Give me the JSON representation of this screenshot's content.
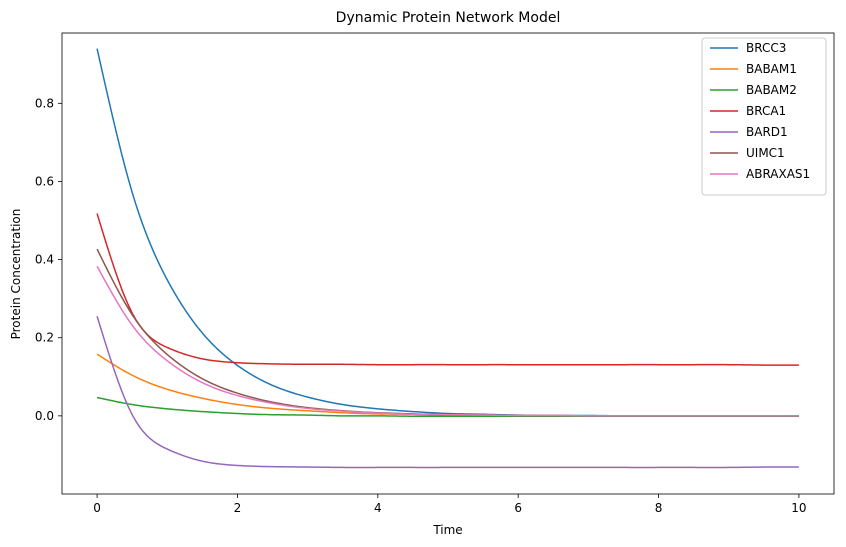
{
  "chart_data": {
    "type": "line",
    "title": "Dynamic Protein Network Model",
    "xlabel": "Time",
    "ylabel": "Protein Concentration",
    "xlim": [
      -0.5,
      10.5
    ],
    "ylim": [
      -0.2,
      0.98
    ],
    "x_ticks": [
      0,
      2,
      4,
      6,
      8,
      10
    ],
    "x_tick_labels": [
      "0",
      "2",
      "4",
      "6",
      "8",
      "10"
    ],
    "y_ticks": [
      0.0,
      0.2,
      0.4,
      0.6,
      0.8
    ],
    "y_tick_labels": [
      "0.0",
      "0.2",
      "0.4",
      "0.6",
      "0.8"
    ],
    "grid": false,
    "legend_position": "top-right",
    "x": [
      0,
      0.5,
      1,
      1.5,
      2,
      2.5,
      3,
      3.5,
      4,
      4.5,
      5,
      5.5,
      6,
      6.5,
      7,
      7.5,
      8,
      8.5,
      9,
      9.5,
      10
    ],
    "series": [
      {
        "name": "BRCC3",
        "color": "#1f77b4",
        "values": [
          0.94,
          0.572,
          0.348,
          0.212,
          0.129,
          0.078,
          0.048,
          0.029,
          0.018,
          0.011,
          0.006,
          0.004,
          0.002,
          0.001,
          0.001,
          0.0,
          0.0,
          0.0,
          0.0,
          0.0,
          0.0
        ]
      },
      {
        "name": "BABAM1",
        "color": "#ff7f0e",
        "values": [
          0.158,
          0.104,
          0.068,
          0.045,
          0.029,
          0.019,
          0.013,
          0.008,
          0.005,
          0.004,
          0.002,
          0.002,
          0.001,
          0.001,
          0.0,
          0.0,
          0.0,
          0.0,
          0.0,
          0.0,
          0.0
        ]
      },
      {
        "name": "BABAM2",
        "color": "#2ca02c",
        "values": [
          0.047,
          0.029,
          0.018,
          0.011,
          0.006,
          0.003,
          0.002,
          0.0,
          0.0,
          -0.001,
          -0.001,
          -0.001,
          -0.001,
          -0.001,
          -0.001,
          -0.001,
          -0.001,
          -0.001,
          -0.001,
          -0.001,
          -0.001
        ]
      },
      {
        "name": "BRCA1",
        "color": "#d62728",
        "values": [
          0.518,
          0.263,
          0.175,
          0.146,
          0.136,
          0.133,
          0.132,
          0.132,
          0.131,
          0.131,
          0.131,
          0.131,
          0.131,
          0.131,
          0.131,
          0.131,
          0.131,
          0.131,
          0.131,
          0.13,
          0.13
        ]
      },
      {
        "name": "BARD1",
        "color": "#9467bd",
        "values": [
          0.255,
          0.003,
          -0.085,
          -0.116,
          -0.127,
          -0.13,
          -0.131,
          -0.132,
          -0.132,
          -0.132,
          -0.132,
          -0.132,
          -0.132,
          -0.132,
          -0.132,
          -0.132,
          -0.132,
          -0.132,
          -0.132,
          -0.131,
          -0.131
        ]
      },
      {
        "name": "UIMC1",
        "color": "#8c564b",
        "values": [
          0.427,
          0.259,
          0.157,
          0.095,
          0.058,
          0.035,
          0.021,
          0.013,
          0.008,
          0.005,
          0.003,
          0.002,
          0.001,
          0.001,
          0.0,
          0.0,
          0.0,
          0.0,
          0.0,
          0.0,
          0.0
        ]
      },
      {
        "name": "ABRAXAS1",
        "color": "#e377c2",
        "values": [
          0.383,
          0.232,
          0.141,
          0.085,
          0.052,
          0.032,
          0.019,
          0.012,
          0.007,
          0.004,
          0.003,
          0.002,
          0.001,
          0.001,
          0.0,
          0.0,
          0.0,
          0.0,
          0.0,
          0.0,
          0.0
        ]
      }
    ]
  }
}
